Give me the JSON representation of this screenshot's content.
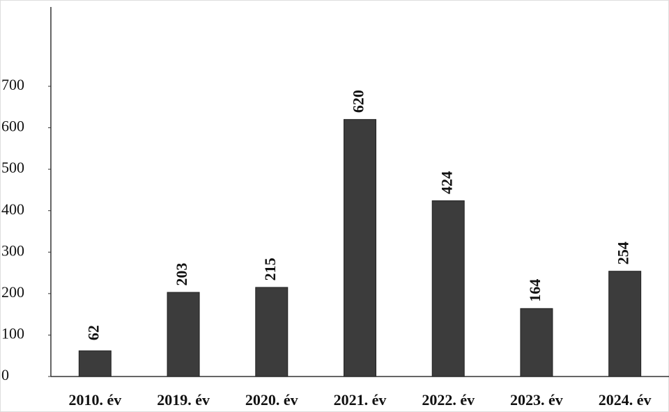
{
  "chart_data": {
    "type": "bar",
    "categories": [
      "2010. év",
      "2019. év",
      "2020. év",
      "2021. év",
      "2022. év",
      "2023. év",
      "2024. év"
    ],
    "values": [
      62,
      203,
      215,
      620,
      424,
      164,
      254
    ],
    "color": "#3c3c3c",
    "ylim": [
      0,
      700
    ],
    "yticks": [
      0,
      100,
      200,
      300,
      400,
      500,
      600,
      700
    ],
    "data_labels": true
  }
}
